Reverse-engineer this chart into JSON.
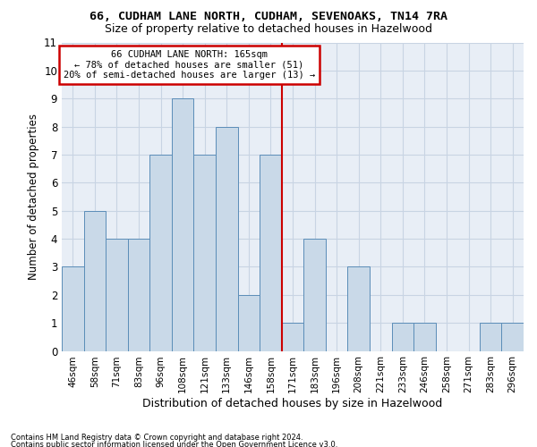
{
  "title": "66, CUDHAM LANE NORTH, CUDHAM, SEVENOAKS, TN14 7RA",
  "subtitle": "Size of property relative to detached houses in Hazelwood",
  "xlabel_bottom": "Distribution of detached houses by size in Hazelwood",
  "ylabel": "Number of detached properties",
  "categories": [
    "46sqm",
    "58sqm",
    "71sqm",
    "83sqm",
    "96sqm",
    "108sqm",
    "121sqm",
    "133sqm",
    "146sqm",
    "158sqm",
    "171sqm",
    "183sqm",
    "196sqm",
    "208sqm",
    "221sqm",
    "233sqm",
    "246sqm",
    "258sqm",
    "271sqm",
    "283sqm",
    "296sqm"
  ],
  "values": [
    3,
    5,
    4,
    4,
    7,
    9,
    7,
    8,
    2,
    7,
    1,
    4,
    0,
    3,
    0,
    1,
    1,
    0,
    0,
    1,
    1
  ],
  "bar_color": "#c9d9e8",
  "bar_edgecolor": "#5b8db8",
  "grid_color": "#c8d4e3",
  "background_color": "#e8eef6",
  "vline_x_index": 9.5,
  "vline_color": "#cc0000",
  "annotation_line1": "66 CUDHAM LANE NORTH: 165sqm",
  "annotation_line2": "← 78% of detached houses are smaller (51)",
  "annotation_line3": "20% of semi-detached houses are larger (13) →",
  "annotation_box_color": "#cc0000",
  "footnote1": "Contains HM Land Registry data © Crown copyright and database right 2024.",
  "footnote2": "Contains public sector information licensed under the Open Government Licence v3.0.",
  "ylim": [
    0,
    11
  ],
  "yticks": [
    0,
    1,
    2,
    3,
    4,
    5,
    6,
    7,
    8,
    9,
    10,
    11
  ]
}
